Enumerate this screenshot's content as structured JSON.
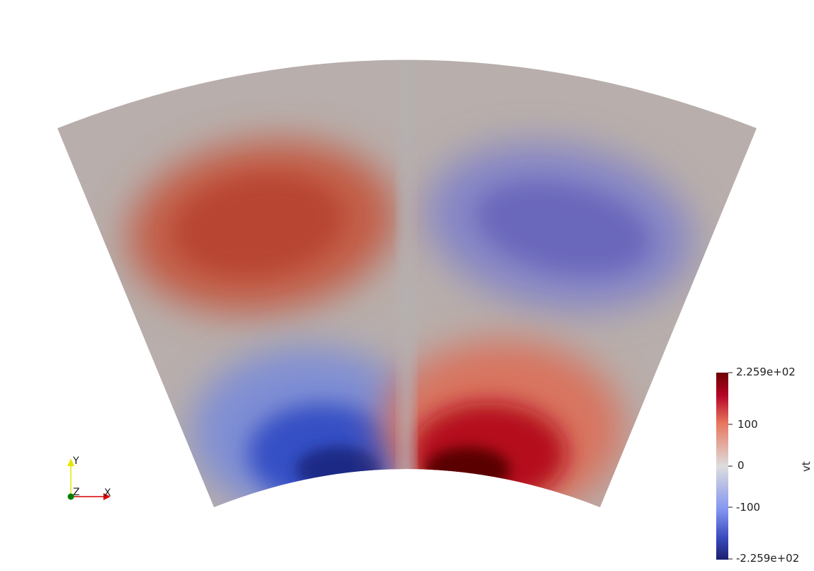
{
  "scalar_field": {
    "name": "vt",
    "range": [
      -225.9,
      225.9
    ],
    "colormap": "Cool to Warm",
    "colors": {
      "min": "#3b4cc0",
      "mid": "#dddddd",
      "max": "#b40426",
      "extreme_min": "#1a1f6e",
      "extreme_max": "#4a0000",
      "background": "#ffffff",
      "zero_contour": "#b3b3b3"
    }
  },
  "color_bar": {
    "title": "vt",
    "labels": [
      "2.259e+02",
      "100",
      "0",
      "-100",
      "-2.259e+02"
    ]
  },
  "axes_triad": {
    "x_label": "X",
    "y_label": "Y",
    "z_label": "Z",
    "x_color": "#d90000",
    "y_color": "#e6e600",
    "z_color": "#008000"
  }
}
